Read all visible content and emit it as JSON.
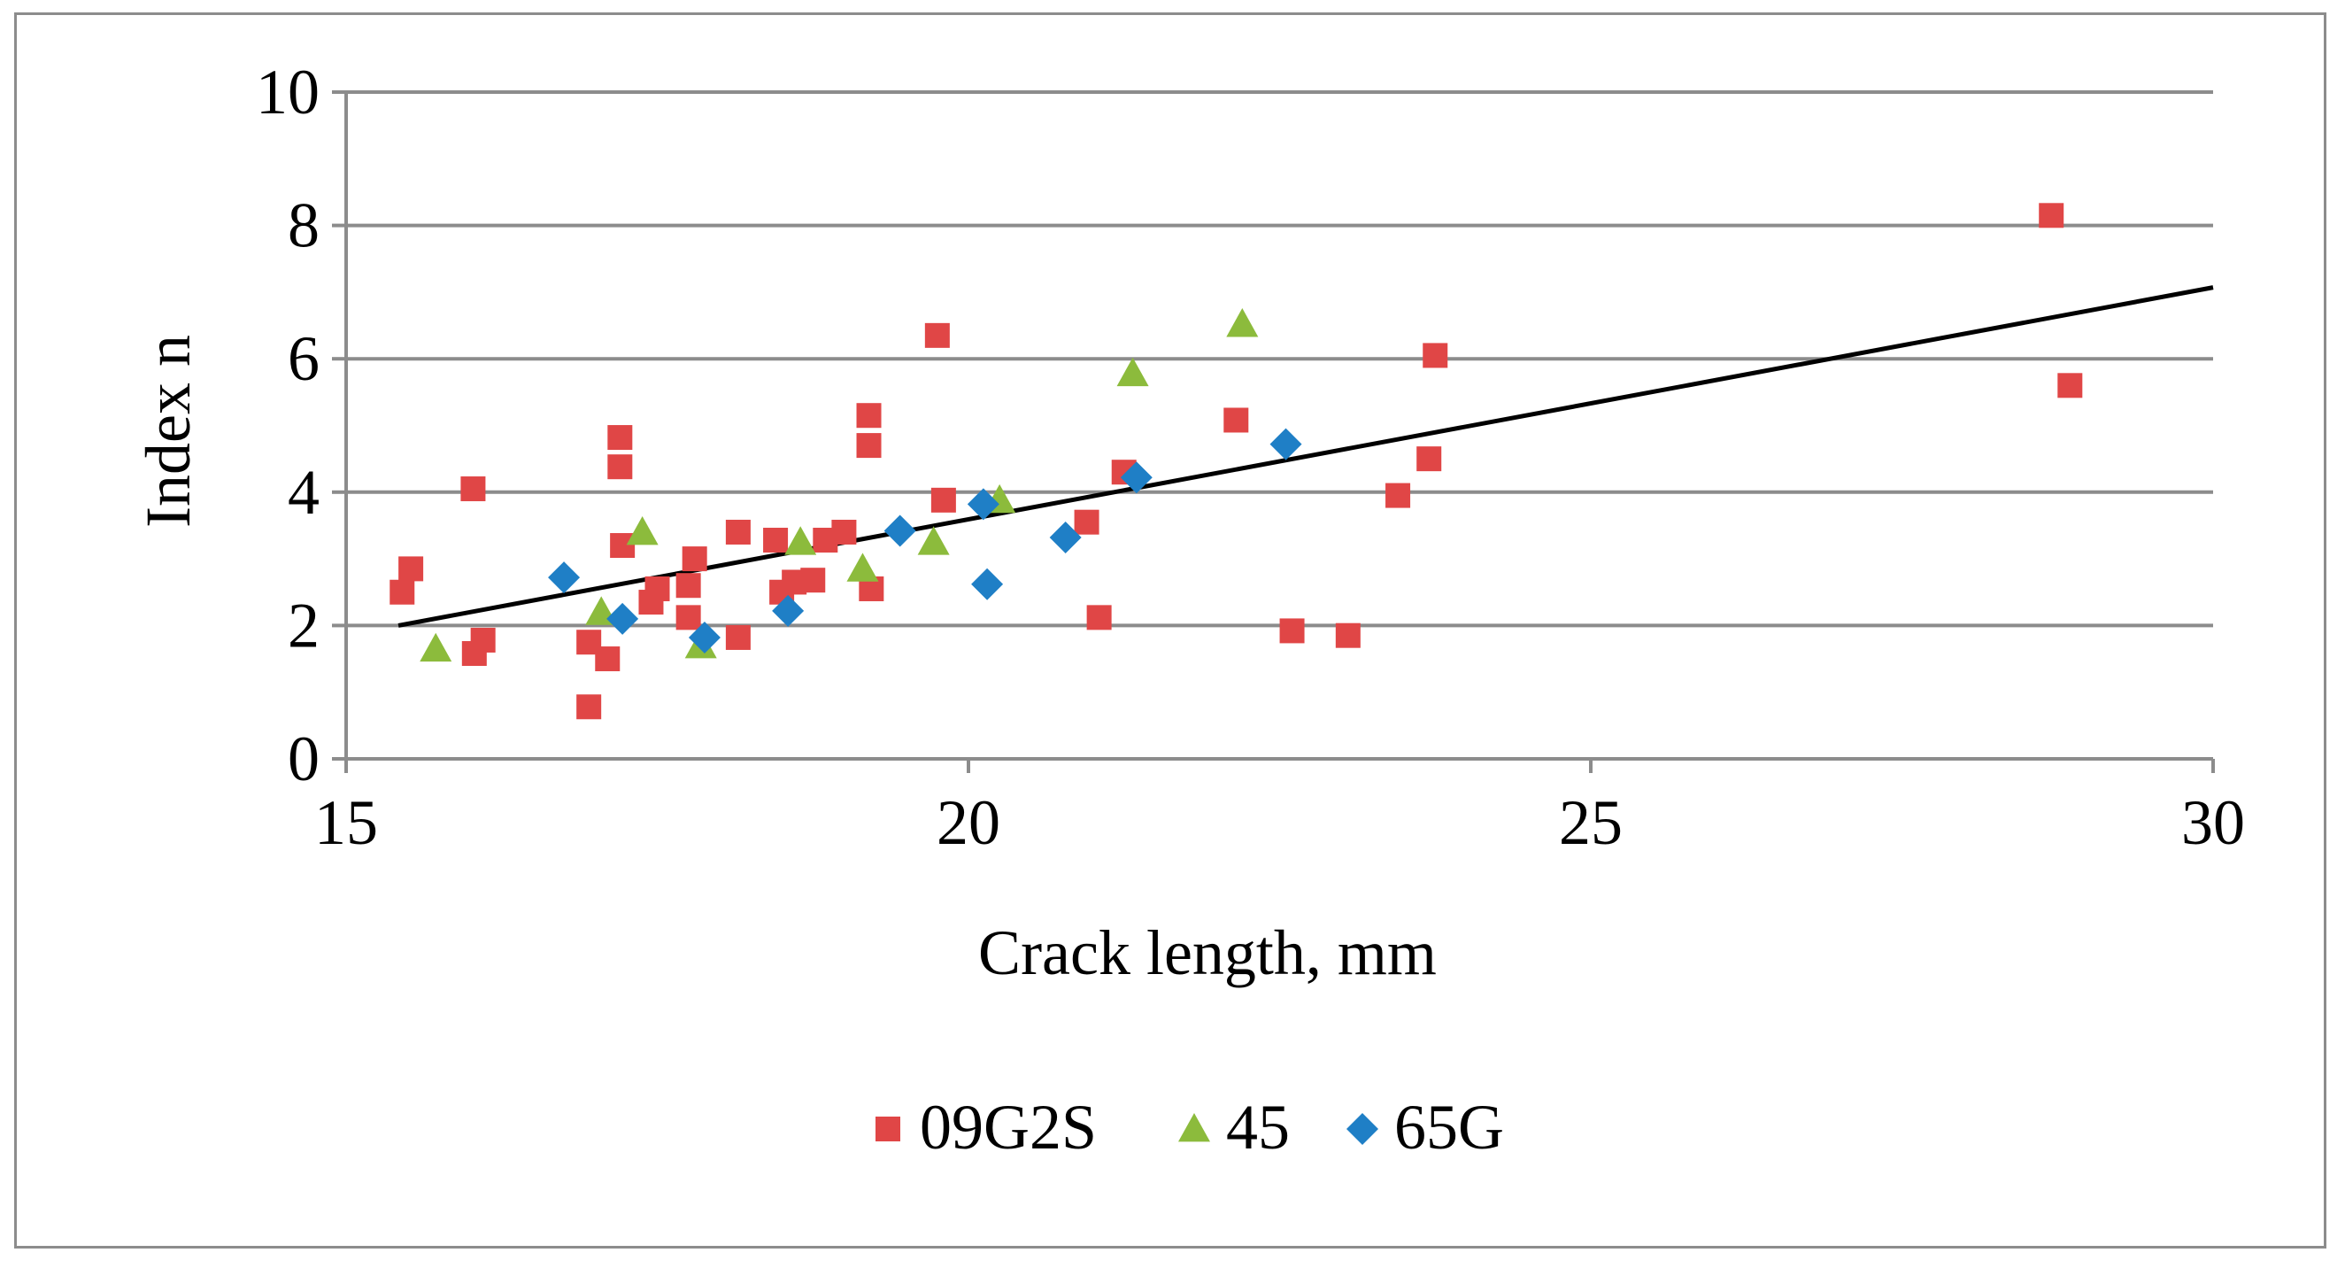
{
  "chart_data": {
    "type": "scatter",
    "title": "",
    "xlabel": "Crack length, mm",
    "ylabel": "Index n",
    "xlim": [
      15,
      30
    ],
    "ylim": [
      0,
      10
    ],
    "x_ticks": [
      15,
      20,
      25,
      30
    ],
    "y_ticks": [
      0,
      2,
      4,
      6,
      8,
      10
    ],
    "grid": "horizontal",
    "legend_position": "bottom",
    "series": [
      {
        "name": "09G2S",
        "marker": "square",
        "color": "#e04646",
        "points": [
          [
            15.45,
            2.5
          ],
          [
            15.52,
            2.85
          ],
          [
            16.02,
            4.05
          ],
          [
            16.03,
            1.58
          ],
          [
            16.1,
            1.78
          ],
          [
            16.95,
            0.78
          ],
          [
            16.95,
            1.75
          ],
          [
            17.1,
            1.5
          ],
          [
            17.2,
            4.82
          ],
          [
            17.2,
            4.38
          ],
          [
            17.22,
            3.2
          ],
          [
            17.45,
            2.35
          ],
          [
            17.5,
            2.55
          ],
          [
            17.75,
            2.6
          ],
          [
            17.75,
            2.12
          ],
          [
            17.8,
            3.0
          ],
          [
            18.15,
            3.4
          ],
          [
            18.15,
            1.82
          ],
          [
            18.45,
            3.28
          ],
          [
            18.5,
            2.5
          ],
          [
            18.6,
            2.65
          ],
          [
            18.75,
            2.68
          ],
          [
            18.85,
            3.28
          ],
          [
            19.0,
            3.4
          ],
          [
            19.2,
            5.15
          ],
          [
            19.2,
            4.7
          ],
          [
            19.22,
            2.55
          ],
          [
            19.75,
            6.35
          ],
          [
            19.8,
            3.88
          ],
          [
            20.95,
            3.55
          ],
          [
            21.05,
            2.12
          ],
          [
            21.25,
            4.3
          ],
          [
            22.15,
            5.08
          ],
          [
            22.6,
            1.92
          ],
          [
            23.05,
            1.85
          ],
          [
            23.45,
            3.95
          ],
          [
            23.7,
            4.5
          ],
          [
            23.75,
            6.05
          ],
          [
            28.7,
            8.15
          ],
          [
            28.85,
            5.6
          ]
        ]
      },
      {
        "name": "45",
        "marker": "triangle",
        "color": "#8cbb3c",
        "points": [
          [
            15.72,
            1.65
          ],
          [
            17.05,
            2.2
          ],
          [
            17.38,
            3.4
          ],
          [
            17.85,
            1.7
          ],
          [
            18.65,
            3.25
          ],
          [
            19.15,
            2.85
          ],
          [
            19.72,
            3.25
          ],
          [
            20.25,
            3.88
          ],
          [
            21.32,
            5.78
          ],
          [
            22.2,
            6.52
          ]
        ]
      },
      {
        "name": "65G",
        "marker": "diamond",
        "color": "#1f7fc6",
        "points": [
          [
            16.75,
            2.72
          ],
          [
            17.22,
            2.1
          ],
          [
            17.88,
            1.82
          ],
          [
            18.55,
            2.22
          ],
          [
            19.45,
            3.42
          ],
          [
            20.12,
            3.82
          ],
          [
            20.15,
            2.62
          ],
          [
            20.78,
            3.32
          ],
          [
            21.35,
            4.22
          ],
          [
            22.55,
            4.72
          ]
        ]
      }
    ],
    "trendline": {
      "type": "linear",
      "color": "#000000",
      "points": [
        [
          15.42,
          2.0
        ],
        [
          30.0,
          7.07
        ]
      ]
    }
  }
}
